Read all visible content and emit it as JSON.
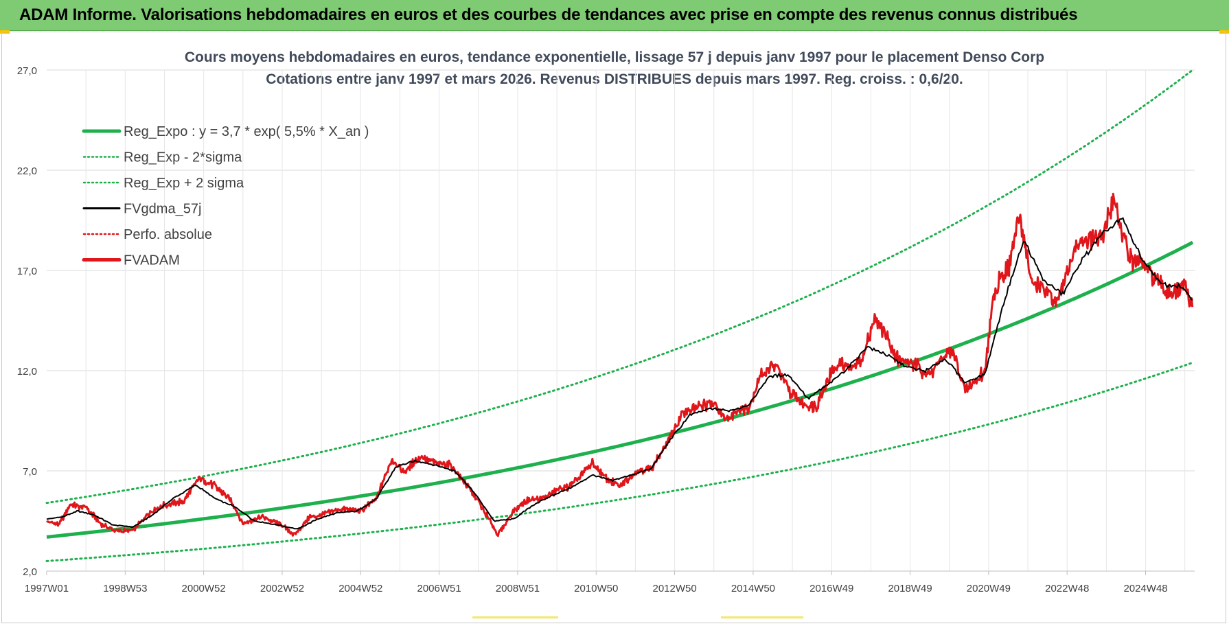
{
  "banner": {
    "title": "ADAM Informe. Valorisations hebdomadaires en euros et des courbes de tendances avec prise en compte des revenus connus distribués",
    "color": "#7fcb73"
  },
  "chart_data": {
    "type": "line",
    "title": "Cours moyens hebdomadaires en euros, tendance exponentielle, lissage 57 j depuis janv 1997 pour le placement Denso Corp",
    "subtitle": "Cotations entre janv 1997 et mars 2026. Revenus DISTRIBUES depuis mars 1997. Reg. croiss. : 0,6/20.",
    "xlabel": "",
    "ylabel": "",
    "x_range": [
      "1997W01",
      "2026W12"
    ],
    "x_tick_labels": [
      "1997W01",
      "1998W53",
      "2000W52",
      "2002W52",
      "2004W52",
      "2006W51",
      "2008W51",
      "2010W50",
      "2012W50",
      "2014W50",
      "2016W49",
      "2018W49",
      "2020W49",
      "2022W48",
      "2024W48"
    ],
    "y_ticks": [
      "2,0",
      "7,0",
      "12,0",
      "17,0",
      "22,0",
      "27,0"
    ],
    "ylim": [
      2,
      27
    ],
    "grid": true,
    "legend_position": "top-left",
    "legend": [
      {
        "label": "Reg_Expo : y = 3,7 * exp( 5,5% *  X_an )",
        "color": "#1db04c",
        "style": "solid-thick"
      },
      {
        "label": "Reg_Exp - 2*sigma",
        "color": "#1db04c",
        "style": "dotted"
      },
      {
        "label": "Reg_Exp + 2 sigma",
        "color": "#1db04c",
        "style": "dotted"
      },
      {
        "label": "FVgdma_57j",
        "color": "#000000",
        "style": "solid"
      },
      {
        "label": "Perfo. absolue",
        "color": "#e0161b",
        "style": "dotted"
      },
      {
        "label": "FVADAM",
        "color": "#e0161b",
        "style": "solid-thick"
      }
    ],
    "series": [
      {
        "name": "Reg_Expo : y = 3,7 * exp( 5,5% *  X_an )",
        "x": [
          1997.0,
          2001.0,
          2005.0,
          2009.0,
          2013.0,
          2017.0,
          2021.0,
          2025.0,
          2026.2
        ],
        "values": [
          3.7,
          4.6,
          5.7,
          7.0,
          8.9,
          11.0,
          13.8,
          17.2,
          18.4
        ]
      },
      {
        "name": "Reg_Exp - 2*sigma",
        "x": [
          1997.0,
          2001.0,
          2005.0,
          2009.0,
          2013.0,
          2017.0,
          2021.0,
          2025.0,
          2026.2
        ],
        "values": [
          2.5,
          3.1,
          3.8,
          4.8,
          6.0,
          7.5,
          9.3,
          11.7,
          12.4
        ]
      },
      {
        "name": "Reg_Exp + 2 sigma",
        "x": [
          1997.0,
          2001.0,
          2005.0,
          2009.0,
          2013.0,
          2017.0,
          2021.0,
          2025.0,
          2026.2
        ],
        "values": [
          5.4,
          6.7,
          8.4,
          10.4,
          12.9,
          16.1,
          20.2,
          25.2,
          27.0
        ]
      },
      {
        "name": "FVADAM",
        "x": [
          1997.0,
          1997.3,
          1997.6,
          1998.0,
          1998.4,
          1998.8,
          1999.2,
          1999.6,
          2000.0,
          2000.5,
          2000.9,
          2001.3,
          2001.7,
          2002.0,
          2002.5,
          2003.0,
          2003.3,
          2003.7,
          2004.0,
          2004.5,
          2005.0,
          2005.4,
          2005.8,
          2006.1,
          2006.5,
          2006.9,
          2007.3,
          2007.7,
          2008.0,
          2008.5,
          2008.9,
          2009.2,
          2009.6,
          2010.0,
          2010.4,
          2010.9,
          2011.2,
          2011.6,
          2012.0,
          2012.4,
          2012.8,
          2013.2,
          2013.6,
          2014.0,
          2014.3,
          2014.6,
          2014.9,
          2015.2,
          2015.6,
          2015.9,
          2016.3,
          2016.6,
          2016.9,
          2017.2,
          2017.5,
          2017.8,
          2018.1,
          2018.4,
          2018.7,
          2019.1,
          2019.5,
          2019.8,
          2020.1,
          2020.4,
          2020.6,
          2020.9,
          2021.1,
          2021.3,
          2021.5,
          2021.8,
          2022.1,
          2022.4,
          2022.7,
          2023.0,
          2023.3,
          2023.6,
          2023.9,
          2024.2,
          2024.4,
          2024.6,
          2024.9,
          2025.2,
          2025.5,
          2025.8,
          2026.0,
          2026.2
        ],
        "values": [
          4.5,
          4.3,
          5.3,
          5.2,
          4.3,
          4.0,
          4.0,
          4.9,
          5.3,
          5.5,
          6.7,
          6.2,
          5.5,
          4.4,
          4.7,
          4.3,
          3.8,
          4.7,
          4.8,
          5.1,
          5.0,
          5.6,
          7.6,
          6.9,
          7.7,
          7.4,
          7.3,
          6.3,
          5.5,
          3.8,
          5.0,
          5.5,
          5.6,
          6.0,
          6.3,
          7.4,
          6.7,
          6.2,
          7.0,
          7.1,
          8.3,
          9.9,
          10.2,
          10.4,
          9.6,
          10.0,
          10.2,
          11.8,
          12.3,
          11.0,
          10.3,
          10.2,
          11.6,
          12.4,
          12.1,
          12.7,
          14.7,
          13.7,
          12.5,
          12.3,
          11.8,
          12.6,
          12.9,
          11.0,
          11.3,
          12.0,
          15.3,
          16.8,
          17.0,
          19.8,
          16.3,
          16.2,
          15.2,
          17.0,
          18.4,
          18.6,
          18.6,
          20.8,
          18.8,
          17.6,
          17.4,
          16.6,
          16.0,
          15.9,
          16.2,
          15.0
        ]
      },
      {
        "name": "FVgdma_57j",
        "x": [
          1997.0,
          1997.4,
          1997.8,
          1998.2,
          1998.7,
          1999.2,
          1999.7,
          2000.2,
          2000.8,
          2001.3,
          2001.8,
          2002.3,
          2002.9,
          2003.4,
          2003.9,
          2004.4,
          2004.9,
          2005.4,
          2005.9,
          2006.4,
          2006.9,
          2007.4,
          2007.9,
          2008.4,
          2008.9,
          2009.4,
          2009.9,
          2010.4,
          2010.9,
          2011.4,
          2011.9,
          2012.4,
          2012.9,
          2013.4,
          2013.9,
          2014.4,
          2014.9,
          2015.4,
          2015.9,
          2016.4,
          2016.9,
          2017.4,
          2017.9,
          2018.4,
          2018.9,
          2019.4,
          2019.9,
          2020.4,
          2020.9,
          2021.4,
          2021.9,
          2022.4,
          2022.9,
          2023.4,
          2023.9,
          2024.4,
          2024.9,
          2025.4,
          2025.9,
          2026.2
        ],
        "values": [
          4.6,
          4.7,
          5.0,
          4.8,
          4.3,
          4.2,
          4.8,
          5.6,
          6.3,
          5.6,
          5.2,
          4.5,
          4.3,
          4.1,
          4.6,
          4.9,
          5.0,
          5.6,
          7.2,
          7.5,
          7.3,
          7.0,
          5.9,
          4.5,
          4.6,
          5.3,
          5.8,
          6.2,
          6.8,
          6.5,
          6.8,
          7.1,
          8.6,
          9.8,
          10.1,
          10.0,
          10.3,
          11.7,
          11.8,
          10.6,
          11.3,
          12.1,
          13.2,
          12.8,
          12.2,
          12.0,
          12.6,
          11.4,
          11.8,
          15.5,
          18.5,
          16.5,
          15.8,
          17.6,
          18.8,
          19.6,
          17.6,
          16.3,
          16.2,
          15.5
        ]
      }
    ]
  }
}
